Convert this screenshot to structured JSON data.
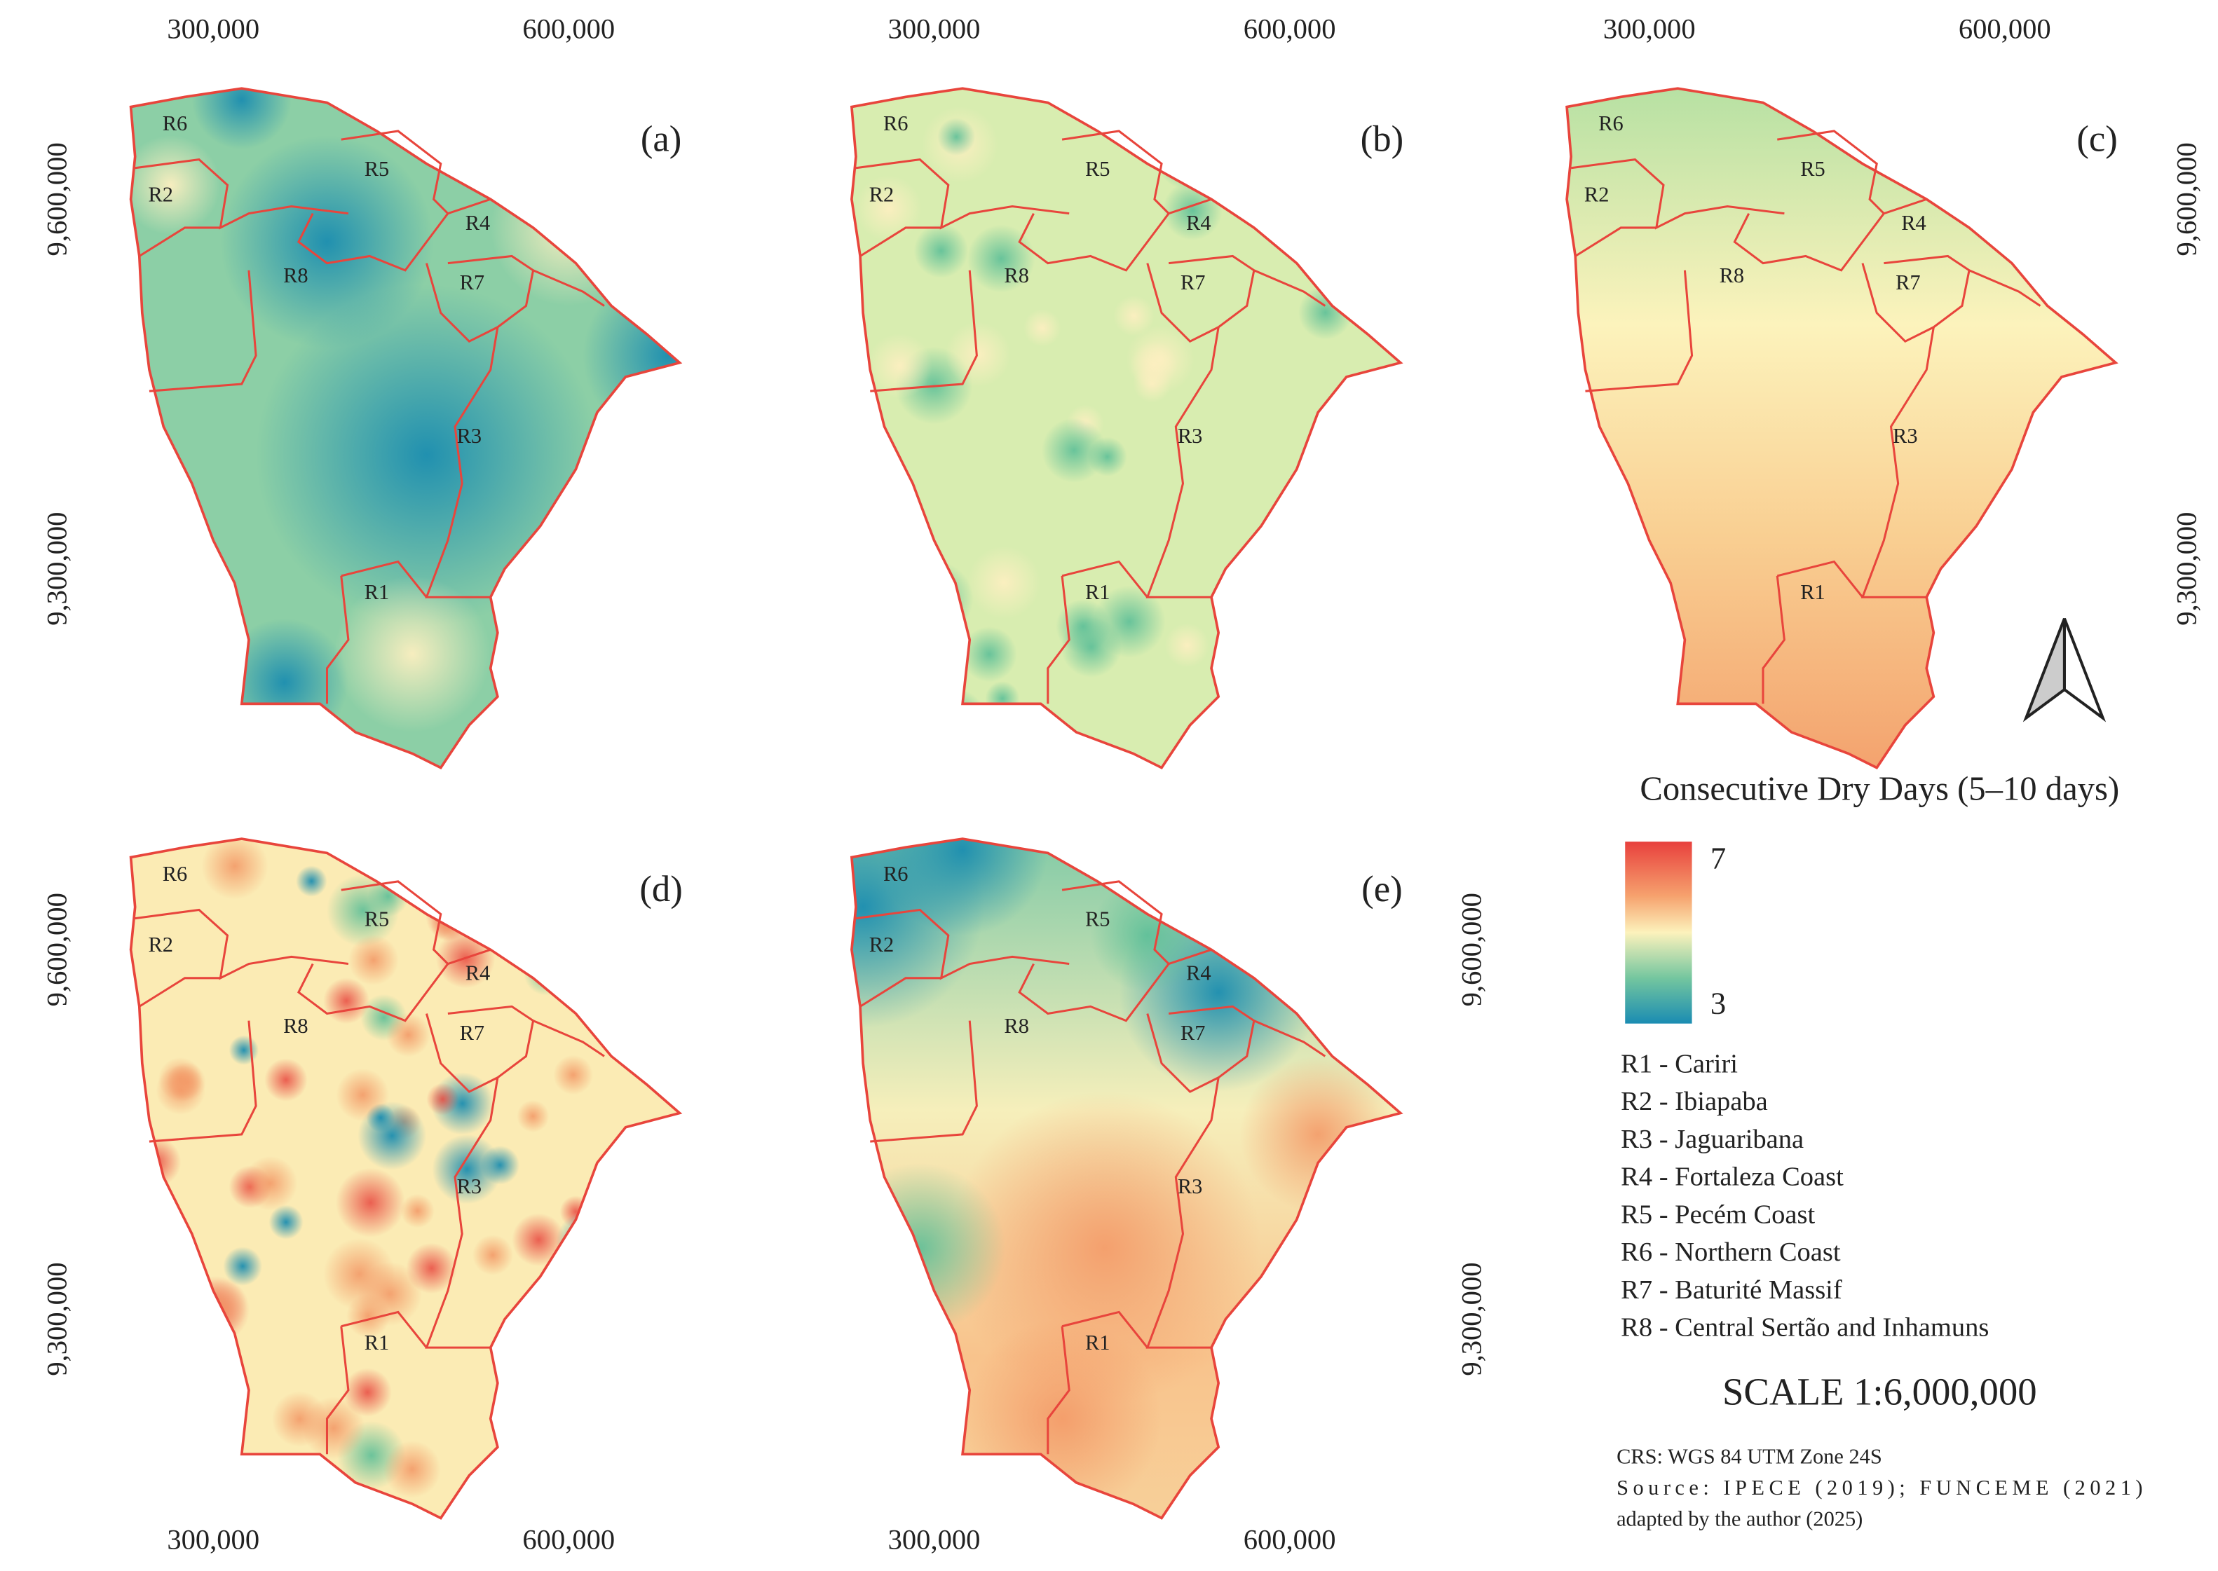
{
  "panels": [
    {
      "label": "(a)"
    },
    {
      "label": "(b)"
    },
    {
      "label": "(c)"
    },
    {
      "label": "(d)"
    },
    {
      "label": "(e)"
    }
  ],
  "region_labels": [
    "R1",
    "R2",
    "R3",
    "R4",
    "R5",
    "R6",
    "R7",
    "R8"
  ],
  "x_ticks": [
    "300,000",
    "600,000"
  ],
  "y_ticks": [
    "9,600,000",
    "9,300,000"
  ],
  "legend": {
    "title": "Consecutive Dry Days (5–10 days)",
    "max": 7,
    "min": 3,
    "regions": [
      "R1 - Cariri",
      "R2 - Ibiapaba",
      "R3 - Jaguaribana",
      "R4 - Fortaleza Coast",
      "R5 - Pecém Coast",
      "R6 - Northern Coast",
      "R7 - Baturité Massif",
      "R8 - Central Sertão and Inhamuns"
    ]
  },
  "scale": "SCALE 1:6,000,000",
  "crs": "CRS: WGS 84 UTM Zone 24S",
  "source": "Source: IPECE (2019); FUNCEME (2021)",
  "adapted": "adapted by the author (2025)"
}
